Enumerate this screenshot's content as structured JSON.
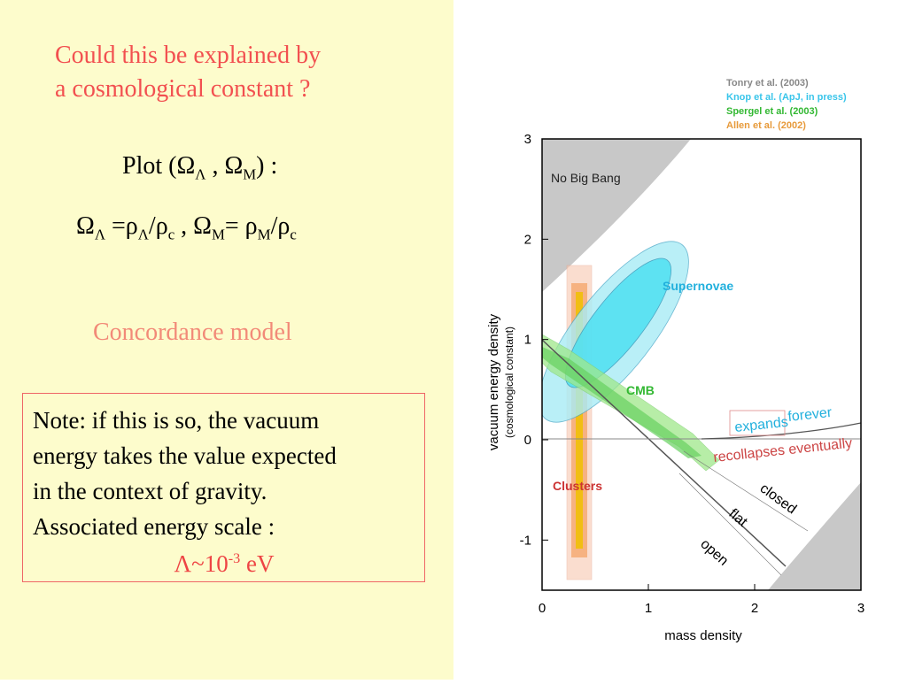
{
  "slide": {
    "question_line1": "Could this be explained by",
    "question_line2": "a cosmological constant ?",
    "plot_prefix": "Plot  (Ω",
    "plot_sub1": "Λ",
    "plot_mid": " , Ω",
    "plot_sub2": "M",
    "plot_suffix": ") :",
    "omega_1": "Ω",
    "omega_sub_L": "Λ",
    "omega_eq": " =ρ",
    "omega_sub_L2": "Λ",
    "omega_div": "/ρ",
    "omega_sub_c": "c",
    "omega_comma": " , Ω",
    "omega_sub_M": "M",
    "omega_eq2": "= ρ",
    "omega_sub_M2": "M",
    "omega_div2": "/ρ",
    "omega_sub_c2": "c",
    "concordance": "Concordance model",
    "note_line1": "Note: if this is so, the vacuum",
    "note_line2": "energy takes the value expected",
    "note_line3": "in the context of gravity.",
    "note_line4": "Associated energy scale :",
    "scale_base": "Λ~10",
    "scale_exp": "-3",
    "scale_unit": " eV"
  },
  "chart_data": {
    "type": "scatter",
    "xlabel": "mass density",
    "ylabel": "vacuum energy density",
    "ylabel_sub": "(cosmological constant)",
    "xlim": [
      0,
      3
    ],
    "ylim": [
      -1.5,
      3
    ],
    "x_ticks": [
      "0",
      "1",
      "2",
      "3"
    ],
    "y_ticks": [
      "3",
      "2",
      "1",
      "0",
      "-1"
    ],
    "x_tick_values": [
      0,
      1,
      2,
      3
    ],
    "y_tick_values": [
      3,
      2,
      1,
      0,
      -1
    ],
    "legend": [
      {
        "name": "Tonry et al. (2003)",
        "color": "#888888"
      },
      {
        "name": "Knop et al. (ApJ, in press)",
        "color": "#39c5ea"
      },
      {
        "name": "Spergel et al.  (2003)",
        "color": "#33b833"
      },
      {
        "name": "Allen et al.  (2002)",
        "color": "#e79a3a"
      }
    ],
    "annotations": {
      "no_big_bang": "No Big Bang",
      "supernovae": "Supernovae",
      "cmb": "CMB",
      "clusters": "Clusters",
      "expands": "expands",
      "forever": "forever",
      "recollapses": "recollapses eventually",
      "closed": "closed",
      "flat": "flat",
      "open": "open"
    },
    "colors": {
      "supernovae": "#39d6ee",
      "cmb": "#8fe07a",
      "clusters": "#f2a050",
      "clusters_core": "#f0c000",
      "no_big_bang": "#c8c8c8",
      "region_label_blue": "#22b0dd",
      "region_label_red": "#cc3333"
    },
    "contours": {
      "supernovae": {
        "cx": 0.95,
        "cy": 1.3,
        "rx1": 0.28,
        "ry1": 1.05,
        "rx2": 0.4,
        "ry2": 1.5,
        "angle_deg": 33
      },
      "cmb_flat_band": {
        "x0": 0.0,
        "y0": 1.0,
        "x1": 1.4,
        "y1": -0.4
      },
      "clusters": {
        "x": 0.35,
        "y_min": -1.4,
        "y_max": 1.8,
        "width": 0.15
      }
    },
    "lines": {
      "flat": [
        [
          0,
          1
        ],
        [
          2.3,
          -1.3
        ]
      ],
      "lambda_zero": [
        [
          0,
          0
        ],
        [
          3,
          0
        ]
      ],
      "expands_recollapse": [
        [
          1.0,
          0.0
        ],
        [
          3.0,
          0.1
        ]
      ]
    }
  }
}
